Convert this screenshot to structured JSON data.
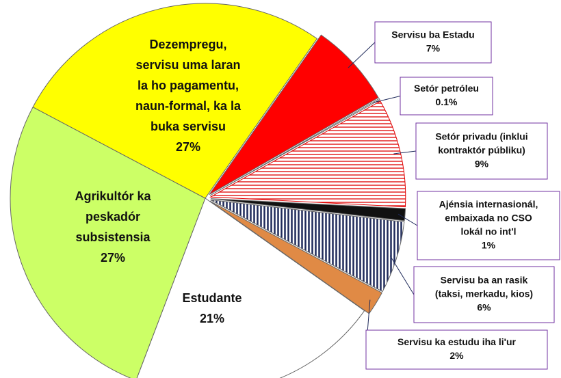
{
  "chart_data": {
    "type": "pie",
    "categories": [
      [
        "Servisu ba Estadu"
      ],
      [
        "Setór petróleu"
      ],
      [
        "Setór privadu (inklui",
        "kontraktór públiku)"
      ],
      [
        "Ajénsia internasionál,",
        "embaixada no CSO",
        "lokál no int'l"
      ],
      [
        "Servisu ba an rasik",
        "(taksi, merkadu, kios)"
      ],
      [
        "Servisu ka estudu iha li'ur"
      ],
      [
        "Estudante"
      ],
      [
        "Agrikultór ka",
        "peskadór",
        "subsistensia"
      ],
      [
        "Dezempregu,",
        "servisu uma laran",
        "la ho pagamentu,",
        "naun-formal, ka la",
        "buka servisu"
      ]
    ],
    "values": [
      7,
      0.1,
      9,
      1,
      6,
      2,
      21,
      27,
      27
    ],
    "value_labels": [
      "7%",
      "0.1%",
      "9%",
      "1%",
      "6%",
      "2%",
      "21%",
      "27%",
      "27%"
    ],
    "colors": [
      "#ff0000",
      "#ffffff",
      "#e00000",
      "#111111",
      "#1f2a5a",
      "#e08a45",
      "#ffffff",
      "#ccff66",
      "#ffff00"
    ],
    "hatches": [
      null,
      null,
      "horizontal",
      null,
      "vertical",
      null,
      null,
      null,
      null
    ]
  }
}
